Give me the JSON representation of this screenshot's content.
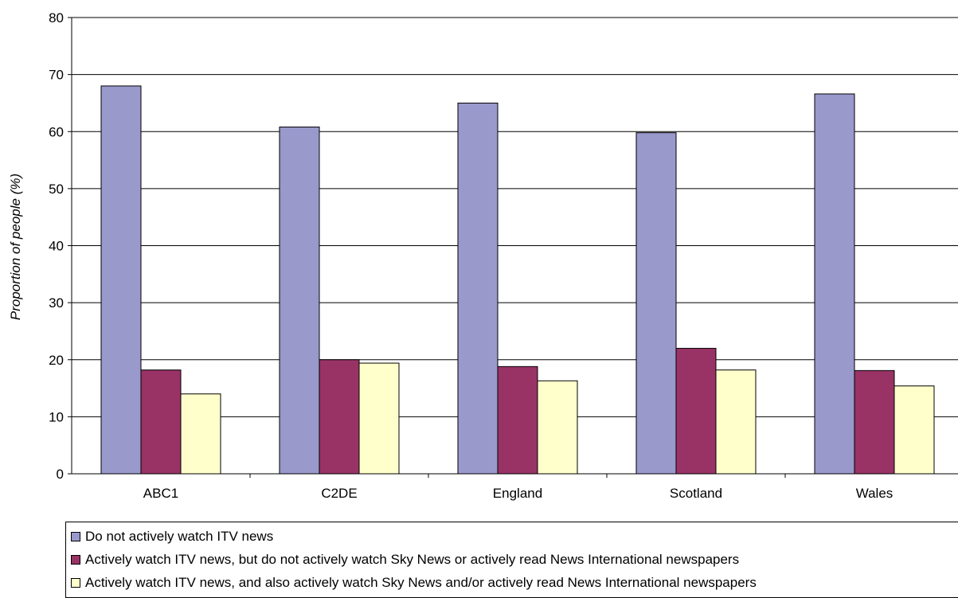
{
  "chart_data": {
    "type": "bar",
    "title": "",
    "xlabel": "",
    "ylabel": "Proportion of people (%)",
    "ylim": [
      0,
      80
    ],
    "yticks": [
      0,
      10,
      20,
      30,
      40,
      50,
      60,
      70,
      80
    ],
    "grid": true,
    "legend_position": "bottom",
    "categories": [
      "ABC1",
      "C2DE",
      "England",
      "Scotland",
      "Wales"
    ],
    "series": [
      {
        "name": "Do not actively watch ITV news",
        "color": "#9999CC",
        "values": [
          68,
          60.8,
          65,
          59.8,
          66.6
        ]
      },
      {
        "name": "Actively watch ITV news, but do not actively watch Sky News or actively read News International newspapers",
        "color": "#993366",
        "values": [
          18.2,
          20,
          18.8,
          22,
          18.1
        ]
      },
      {
        "name": "Actively watch ITV news, and also actively watch Sky News and/or actively read News International newspapers",
        "color": "#FFFFCC",
        "values": [
          14,
          19.4,
          16.3,
          18.2,
          15.4
        ]
      }
    ]
  }
}
